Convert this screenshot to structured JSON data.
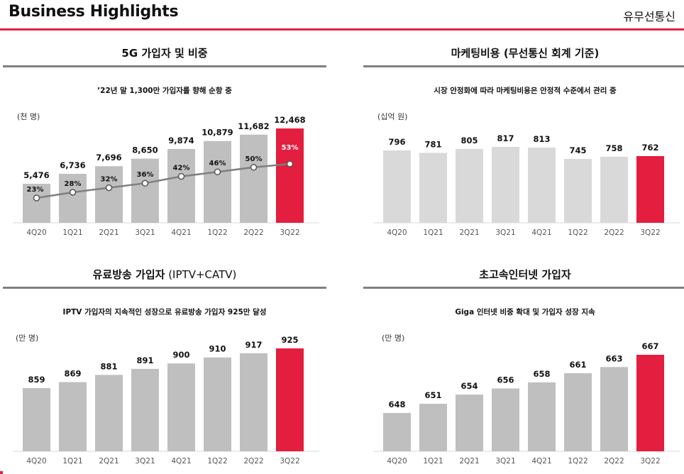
{
  "header": {
    "title": "Business Highlights",
    "tag": "유무선통신"
  },
  "panels": [
    {
      "title": "5G 가입자 및 비중",
      "title_suffix": "",
      "note": "’22년 말 1,300만 가입자를 향해 순항 중",
      "unit": "(천 명)"
    },
    {
      "title": "마케팅비용 (무선통신 회계 기준)",
      "title_suffix": "",
      "note": "시장 안정화에 따라 마케팅비용은 안정적 수준에서 관리 중",
      "unit": "(십억 원)"
    },
    {
      "title": "유료방송 가입자",
      "title_suffix": " (IPTV+CATV)",
      "note": "IPTV 가입자의 지속적인 성장으로 유료방송 가입자 925만 달성",
      "unit": "(만 명)"
    },
    {
      "title": "초고속인터넷 가입자",
      "title_suffix": "",
      "note": "Giga 인터넷 비중 확대 및 가입자 성장 지속",
      "unit": "(만 명)"
    }
  ],
  "colors": {
    "accent": "#e31e3f",
    "bar_dark": "#bfbfbf",
    "bar_light": "#d9d9d9",
    "line": "#7f7f7f",
    "rule": "#808080"
  },
  "chart_data": [
    {
      "type": "bar",
      "title": "5G 가입자 및 비중",
      "ylabel": "(천 명)",
      "categories": [
        "4Q20",
        "1Q21",
        "2Q21",
        "3Q21",
        "4Q21",
        "1Q22",
        "2Q22",
        "3Q22"
      ],
      "values": [
        5476,
        6736,
        7696,
        8650,
        9874,
        10879,
        11682,
        12468
      ],
      "value_labels": [
        "5,476",
        "6,736",
        "7,696",
        "8,650",
        "9,874",
        "10,879",
        "11,682",
        "12,468"
      ],
      "ylim": [
        0,
        12468
      ],
      "overlay_line": {
        "name": "5G 비중",
        "values": [
          23,
          28,
          32,
          36,
          42,
          46,
          50,
          53
        ],
        "labels": [
          "23%",
          "28%",
          "32%",
          "36%",
          "42%",
          "46%",
          "50%",
          "53%"
        ],
        "ylim": [
          0,
          100
        ]
      },
      "highlight_last": true
    },
    {
      "type": "bar",
      "title": "마케팅비용 (무선통신 회계 기준)",
      "ylabel": "(십억 원)",
      "categories": [
        "4Q20",
        "1Q21",
        "2Q21",
        "3Q21",
        "4Q21",
        "1Q22",
        "2Q22",
        "3Q22"
      ],
      "values": [
        796,
        781,
        805,
        817,
        813,
        745,
        758,
        762
      ],
      "value_labels": [
        "796",
        "781",
        "805",
        "817",
        "813",
        "745",
        "758",
        "762"
      ],
      "ylim": [
        0,
        817
      ],
      "highlight_last": true
    },
    {
      "type": "bar",
      "title": "유료방송 가입자 (IPTV+CATV)",
      "ylabel": "(만 명)",
      "categories": [
        "4Q20",
        "1Q21",
        "2Q21",
        "3Q21",
        "4Q21",
        "1Q22",
        "2Q22",
        "3Q22"
      ],
      "values": [
        859,
        869,
        881,
        891,
        900,
        910,
        917,
        925
      ],
      "value_labels": [
        "859",
        "869",
        "881",
        "891",
        "900",
        "910",
        "917",
        "925"
      ],
      "ylim": [
        0,
        925
      ],
      "highlight_last": true
    },
    {
      "type": "bar",
      "title": "초고속인터넷 가입자",
      "ylabel": "(만 명)",
      "categories": [
        "4Q20",
        "1Q21",
        "2Q21",
        "3Q21",
        "4Q21",
        "1Q22",
        "2Q22",
        "3Q22"
      ],
      "values": [
        648,
        651,
        654,
        656,
        658,
        661,
        663,
        667
      ],
      "value_labels": [
        "648",
        "651",
        "654",
        "656",
        "658",
        "661",
        "663",
        "667"
      ],
      "ylim": [
        0,
        667
      ],
      "highlight_last": true
    }
  ]
}
